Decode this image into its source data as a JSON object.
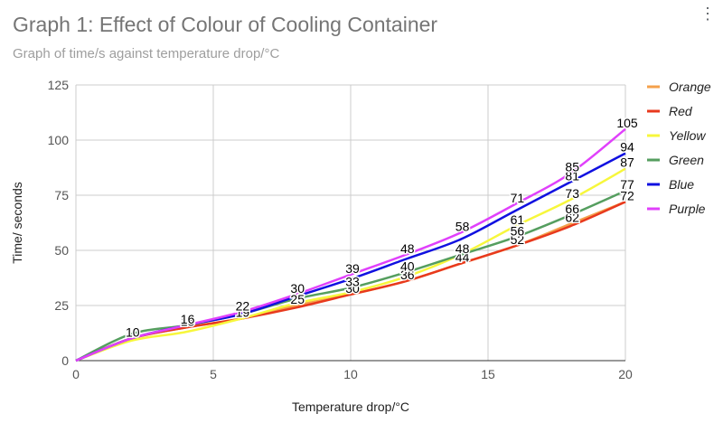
{
  "chart_data": {
    "type": "line",
    "title": "Graph 1: Effect of Colour of Cooling Container",
    "subtitle": "Graph of time/s against temperature drop/°C",
    "xlabel": "Temperature drop/°C",
    "ylabel": "Time/ seconds",
    "xlim": [
      0,
      20
    ],
    "ylim": [
      0,
      125
    ],
    "x_ticks": [
      0,
      5,
      10,
      15,
      20
    ],
    "y_ticks": [
      0,
      25,
      50,
      75,
      100,
      125
    ],
    "grid": true,
    "legend_position": "right",
    "x": [
      0,
      2,
      4,
      6,
      8,
      10,
      12,
      14,
      16,
      18,
      20
    ],
    "series": [
      {
        "name": "Orange",
        "color": "#f4a04b",
        "values": [
          0,
          10,
          15,
          19,
          25,
          30,
          36,
          44,
          52,
          62,
          72
        ],
        "labels": [
          "",
          "10",
          "15",
          "19",
          "25",
          "30",
          "36",
          "44",
          "52",
          "62",
          "72"
        ]
      },
      {
        "name": "Red",
        "color": "#e8391d",
        "values": [
          0,
          10,
          15,
          19,
          24,
          30,
          36,
          44,
          52,
          61,
          72
        ],
        "labels": [
          "",
          "",
          "",
          "",
          "",
          "",
          "",
          "",
          "",
          "",
          ""
        ]
      },
      {
        "name": "Yellow",
        "color": "#f7f73c",
        "values": [
          0,
          9,
          13,
          19,
          26,
          31,
          38,
          48,
          61,
          73,
          87
        ],
        "labels": [
          "",
          "",
          "",
          "",
          "",
          "",
          "",
          "",
          "61",
          "73",
          "87"
        ]
      },
      {
        "name": "Green",
        "color": "#559e5f",
        "values": [
          0,
          12,
          16,
          21,
          28,
          33,
          40,
          48,
          56,
          66,
          77
        ],
        "labels": [
          "",
          "",
          "",
          "",
          "",
          "33",
          "40",
          "48",
          "56",
          "66",
          "77"
        ]
      },
      {
        "name": "Blue",
        "color": "#1010e0",
        "values": [
          0,
          10,
          16,
          21,
          29,
          37,
          46,
          55,
          68,
          81,
          94
        ],
        "labels": [
          "",
          "",
          "",
          "",
          "",
          "",
          "",
          "",
          "",
          "81",
          "94"
        ]
      },
      {
        "name": "Purple",
        "color": "#e040fb",
        "values": [
          0,
          10,
          16,
          22,
          30,
          39,
          48,
          58,
          71,
          85,
          105
        ],
        "labels": [
          "",
          "",
          "16",
          "22",
          "30",
          "39",
          "48",
          "58",
          "71",
          "85",
          "105"
        ]
      }
    ]
  },
  "menu": {
    "more_icon": "vertical-dots-icon",
    "glyph": "⋮"
  }
}
